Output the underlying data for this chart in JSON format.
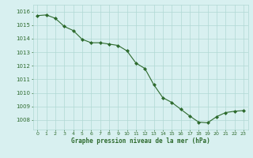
{
  "x": [
    0,
    1,
    2,
    3,
    4,
    5,
    6,
    7,
    8,
    9,
    10,
    11,
    12,
    13,
    14,
    15,
    16,
    17,
    18,
    19,
    20,
    21,
    22,
    23
  ],
  "y": [
    1015.7,
    1015.75,
    1015.5,
    1014.9,
    1014.6,
    1013.95,
    1013.7,
    1013.7,
    1013.6,
    1013.5,
    1013.1,
    1012.2,
    1011.8,
    1010.6,
    1009.65,
    1009.3,
    1008.8,
    1008.3,
    1007.85,
    1007.8,
    1008.25,
    1008.55,
    1008.65,
    1008.7
  ],
  "line_color": "#2d6a2d",
  "marker": "D",
  "marker_size": 2.0,
  "bg_color": "#d8f0f0",
  "grid_color": "#b0d8d4",
  "xlabel": "Graphe pression niveau de la mer (hPa)",
  "xlabel_color": "#2d6a2d",
  "tick_color": "#2d6a2d",
  "ylabel_ticks": [
    1008,
    1009,
    1010,
    1011,
    1012,
    1013,
    1014,
    1015,
    1016
  ],
  "xlim": [
    -0.5,
    23.5
  ],
  "ylim": [
    1007.3,
    1016.5
  ],
  "xtick_labels": [
    "0",
    "1",
    "2",
    "3",
    "4",
    "5",
    "6",
    "7",
    "8",
    "9",
    "10",
    "11",
    "12",
    "13",
    "14",
    "15",
    "16",
    "17",
    "18",
    "19",
    "20",
    "21",
    "22",
    "23"
  ]
}
